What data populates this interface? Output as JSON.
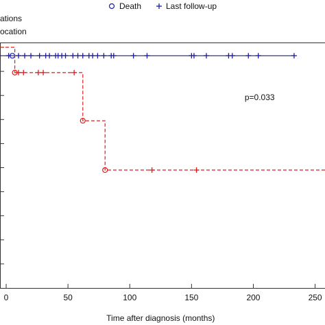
{
  "chart_data": {
    "type": "line",
    "xlabel": "Time after diagnosis (months)",
    "x_ticks": [
      0,
      50,
      100,
      150,
      200,
      250
    ],
    "xlim": [
      -5,
      258
    ],
    "ylim": [
      0,
      1.02
    ],
    "grid": false,
    "legend": {
      "placement": "top",
      "marker_items": [
        {
          "label": "Death",
          "marker": "circle"
        },
        {
          "label": "Last follow-up",
          "marker": "plus"
        }
      ],
      "line_items": [
        {
          "label": "ations",
          "color": "#1a1aa6",
          "style": "solid"
        },
        {
          "label": "ocation",
          "color": "#e01b1b",
          "style": "dashed"
        }
      ]
    },
    "annotation": "p=0.033",
    "colors": {
      "blue": "#1a1aa6",
      "red": "#e01b1b"
    },
    "series": [
      {
        "color": "#1a1aa6",
        "style": "solid",
        "steps": [
          [
            -5,
            0.965
          ],
          [
            233,
            0.965
          ]
        ],
        "events": [
          [
            5,
            0.965
          ]
        ],
        "censored": [
          2,
          10,
          15,
          20,
          27,
          32,
          35,
          40,
          42,
          45,
          48,
          54,
          58,
          62,
          67,
          70,
          74,
          79,
          85,
          87,
          103,
          114,
          150,
          152,
          162,
          180,
          183,
          196,
          204,
          233
        ],
        "censored_y": 0.965
      },
      {
        "color": "#e01b1b",
        "style": "dashed",
        "steps": [
          [
            -5,
            1.0
          ],
          [
            7,
            1.0
          ],
          [
            7,
            0.895
          ],
          [
            62,
            0.895
          ],
          [
            62,
            0.695
          ],
          [
            80,
            0.695
          ],
          [
            80,
            0.49
          ],
          [
            258,
            0.49
          ]
        ],
        "events": [
          [
            7,
            0.895
          ],
          [
            62,
            0.695
          ],
          [
            80,
            0.49
          ]
        ],
        "censored_points": [
          [
            10,
            0.895
          ],
          [
            14,
            0.895
          ],
          [
            26,
            0.895
          ],
          [
            30,
            0.895
          ],
          [
            55,
            0.895
          ],
          [
            118,
            0.49
          ],
          [
            154,
            0.49
          ]
        ]
      }
    ]
  }
}
